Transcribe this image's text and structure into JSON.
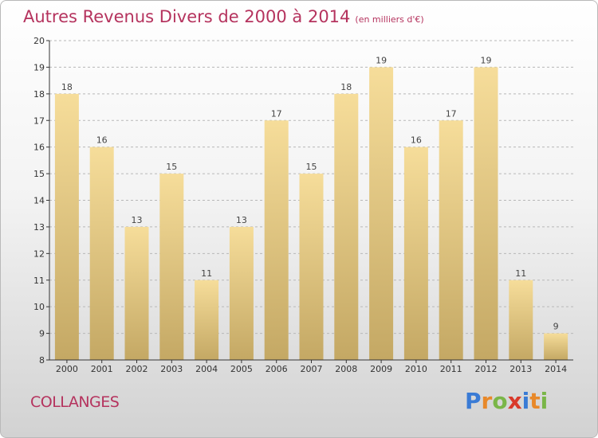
{
  "title": "Autres Revenus Divers de 2000 à 2014",
  "title_unit": "(en milliers d'€)",
  "location": "COLLANGES",
  "brand": "Proxiti",
  "brand_letters": [
    {
      "ch": "P",
      "color": "#3a7bd5"
    },
    {
      "ch": "r",
      "color": "#e8892a"
    },
    {
      "ch": "o",
      "color": "#7ab648"
    },
    {
      "ch": "x",
      "color": "#d93a2b"
    },
    {
      "ch": "i",
      "color": "#3a7bd5"
    },
    {
      "ch": "t",
      "color": "#e8892a"
    },
    {
      "ch": "i",
      "color": "#7ab648"
    }
  ],
  "colors": {
    "title": "#b5335e",
    "bar_light": "#f6dd9a",
    "bar_dark": "#c4a864",
    "axis": "#333333",
    "grid": "#b8b8b8"
  },
  "chart_data": {
    "type": "bar",
    "categories": [
      "2000",
      "2001",
      "2002",
      "2003",
      "2004",
      "2005",
      "2006",
      "2007",
      "2008",
      "2009",
      "2010",
      "2011",
      "2012",
      "2013",
      "2014"
    ],
    "values": [
      18,
      16,
      13,
      15,
      11,
      13,
      17,
      15,
      18,
      19,
      16,
      17,
      19,
      11,
      9
    ],
    "ylim": [
      8,
      20
    ],
    "yticks": [
      8,
      9,
      10,
      11,
      12,
      13,
      14,
      15,
      16,
      17,
      18,
      19,
      20
    ],
    "grid": "horizontal dashed",
    "data_labels": true
  }
}
